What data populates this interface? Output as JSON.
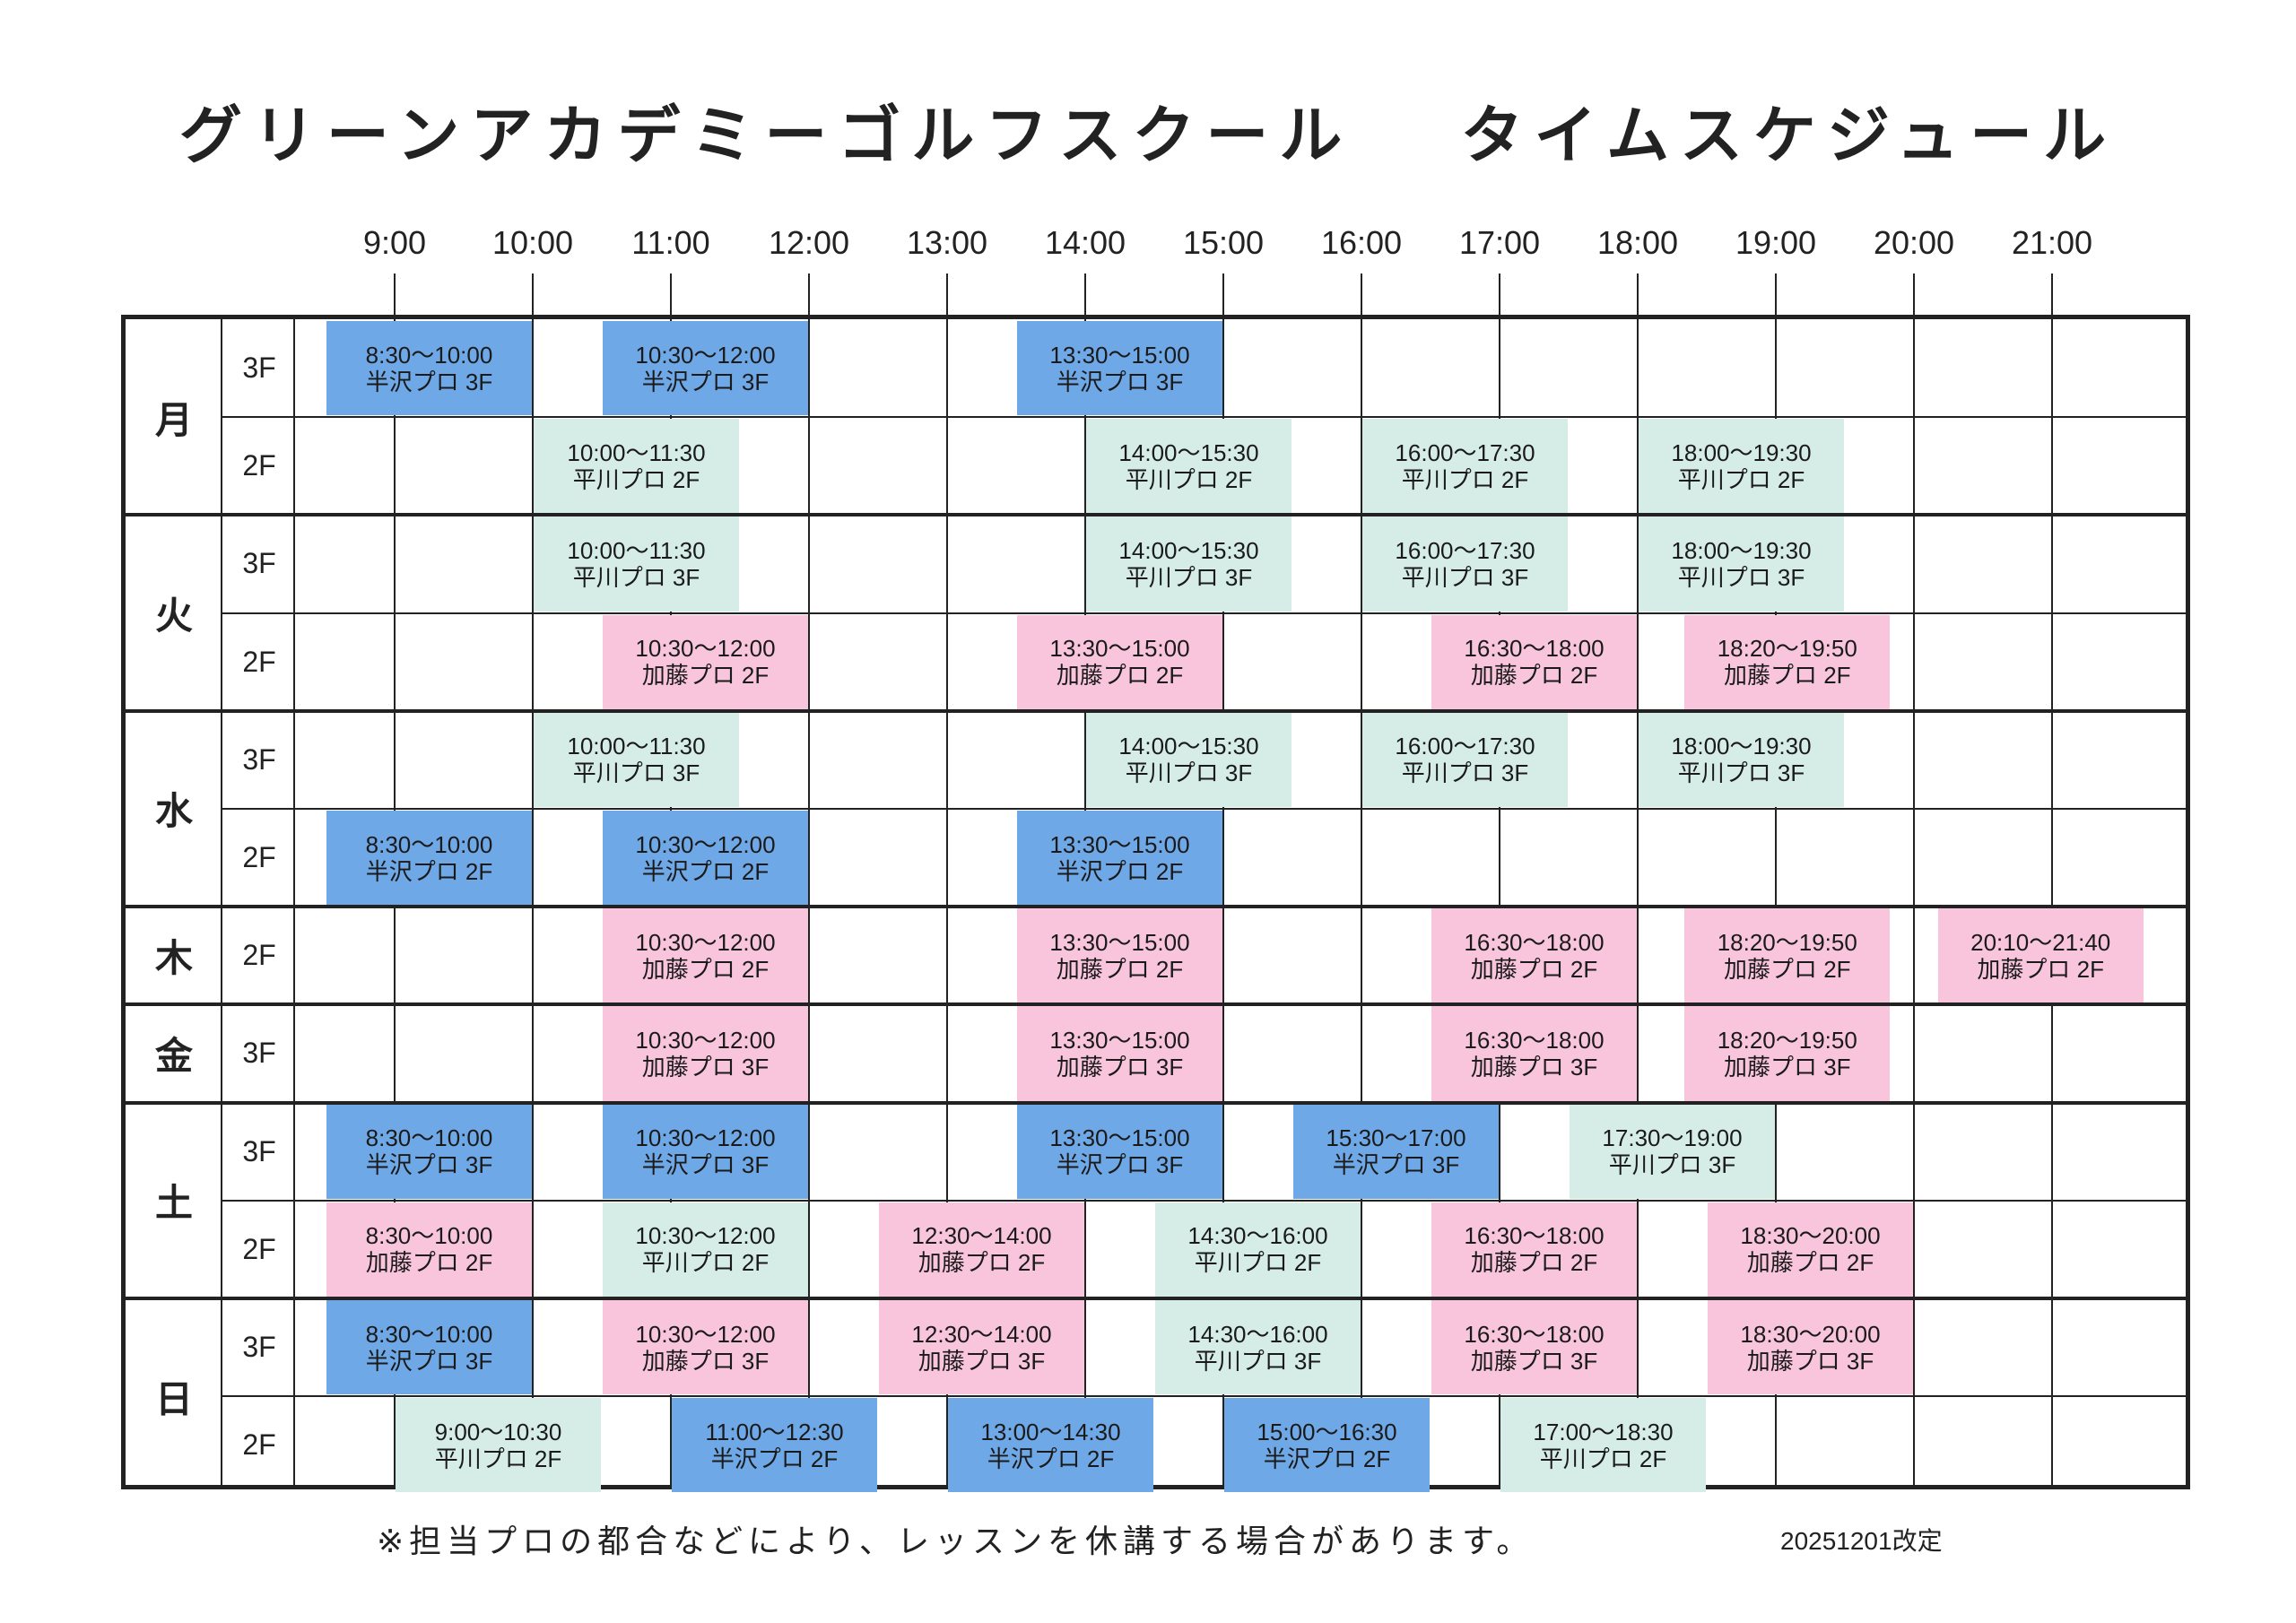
{
  "title": {
    "school": "グリーンアカデミーゴルフスクール",
    "subtitle": "タイムスケジュール"
  },
  "hours": [
    "9:00",
    "10:00",
    "11:00",
    "12:00",
    "13:00",
    "14:00",
    "15:00",
    "16:00",
    "17:00",
    "18:00",
    "19:00",
    "20:00",
    "21:00"
  ],
  "days": [
    {
      "label": "月",
      "floors": [
        "3F",
        "2F"
      ]
    },
    {
      "label": "火",
      "floors": [
        "3F",
        "2F"
      ]
    },
    {
      "label": "水",
      "floors": [
        "3F",
        "2F"
      ]
    },
    {
      "label": "木",
      "floors": [
        "2F"
      ]
    },
    {
      "label": "金",
      "floors": [
        "3F"
      ]
    },
    {
      "label": "土",
      "floors": [
        "3F",
        "2F"
      ]
    },
    {
      "label": "日",
      "floors": [
        "3F",
        "2F"
      ]
    }
  ],
  "instructor_colors": {
    "半沢プロ": "#6fa8e6",
    "平川プロ": "#d5ede6",
    "加藤プロ": "#f8c5dc"
  },
  "lessons": [
    {
      "row": 0,
      "time": "8:30〜10:00",
      "label": "半沢プロ 3F",
      "start": 8.5,
      "end": 10.0,
      "color": "blue"
    },
    {
      "row": 0,
      "time": "10:30〜12:00",
      "label": "半沢プロ 3F",
      "start": 10.5,
      "end": 12.0,
      "color": "blue"
    },
    {
      "row": 0,
      "time": "13:30〜15:00",
      "label": "半沢プロ 3F",
      "start": 13.5,
      "end": 15.0,
      "color": "blue"
    },
    {
      "row": 1,
      "time": "10:00〜11:30",
      "label": "平川プロ 2F",
      "start": 10.0,
      "end": 11.5,
      "color": "green"
    },
    {
      "row": 1,
      "time": "14:00〜15:30",
      "label": "平川プロ 2F",
      "start": 14.0,
      "end": 15.5,
      "color": "green"
    },
    {
      "row": 1,
      "time": "16:00〜17:30",
      "label": "平川プロ 2F",
      "start": 16.0,
      "end": 17.5,
      "color": "green"
    },
    {
      "row": 1,
      "time": "18:00〜19:30",
      "label": "平川プロ 2F",
      "start": 18.0,
      "end": 19.5,
      "color": "green"
    },
    {
      "row": 2,
      "time": "10:00〜11:30",
      "label": "平川プロ 3F",
      "start": 10.0,
      "end": 11.5,
      "color": "green"
    },
    {
      "row": 2,
      "time": "14:00〜15:30",
      "label": "平川プロ 3F",
      "start": 14.0,
      "end": 15.5,
      "color": "green"
    },
    {
      "row": 2,
      "time": "16:00〜17:30",
      "label": "平川プロ 3F",
      "start": 16.0,
      "end": 17.5,
      "color": "green"
    },
    {
      "row": 2,
      "time": "18:00〜19:30",
      "label": "平川プロ 3F",
      "start": 18.0,
      "end": 19.5,
      "color": "green"
    },
    {
      "row": 3,
      "time": "10:30〜12:00",
      "label": "加藤プロ 2F",
      "start": 10.5,
      "end": 12.0,
      "color": "pink"
    },
    {
      "row": 3,
      "time": "13:30〜15:00",
      "label": "加藤プロ 2F",
      "start": 13.5,
      "end": 15.0,
      "color": "pink"
    },
    {
      "row": 3,
      "time": "16:30〜18:00",
      "label": "加藤プロ 2F",
      "start": 16.5,
      "end": 18.0,
      "color": "pink"
    },
    {
      "row": 3,
      "time": "18:20〜19:50",
      "label": "加藤プロ 2F",
      "start": 18.333,
      "end": 19.833,
      "color": "pink"
    },
    {
      "row": 4,
      "time": "10:00〜11:30",
      "label": "平川プロ 3F",
      "start": 10.0,
      "end": 11.5,
      "color": "green"
    },
    {
      "row": 4,
      "time": "14:00〜15:30",
      "label": "平川プロ 3F",
      "start": 14.0,
      "end": 15.5,
      "color": "green"
    },
    {
      "row": 4,
      "time": "16:00〜17:30",
      "label": "平川プロ 3F",
      "start": 16.0,
      "end": 17.5,
      "color": "green"
    },
    {
      "row": 4,
      "time": "18:00〜19:30",
      "label": "平川プロ 3F",
      "start": 18.0,
      "end": 19.5,
      "color": "green"
    },
    {
      "row": 5,
      "time": "8:30〜10:00",
      "label": "半沢プロ 2F",
      "start": 8.5,
      "end": 10.0,
      "color": "blue"
    },
    {
      "row": 5,
      "time": "10:30〜12:00",
      "label": "半沢プロ 2F",
      "start": 10.5,
      "end": 12.0,
      "color": "blue"
    },
    {
      "row": 5,
      "time": "13:30〜15:00",
      "label": "半沢プロ 2F",
      "start": 13.5,
      "end": 15.0,
      "color": "blue"
    },
    {
      "row": 6,
      "time": "10:30〜12:00",
      "label": "加藤プロ 2F",
      "start": 10.5,
      "end": 12.0,
      "color": "pink"
    },
    {
      "row": 6,
      "time": "13:30〜15:00",
      "label": "加藤プロ 2F",
      "start": 13.5,
      "end": 15.0,
      "color": "pink"
    },
    {
      "row": 6,
      "time": "16:30〜18:00",
      "label": "加藤プロ 2F",
      "start": 16.5,
      "end": 18.0,
      "color": "pink"
    },
    {
      "row": 6,
      "time": "18:20〜19:50",
      "label": "加藤プロ 2F",
      "start": 18.333,
      "end": 19.833,
      "color": "pink"
    },
    {
      "row": 6,
      "time": "20:10〜21:40",
      "label": "加藤プロ 2F",
      "start": 20.167,
      "end": 21.667,
      "color": "pink"
    },
    {
      "row": 7,
      "time": "10:30〜12:00",
      "label": "加藤プロ 3F",
      "start": 10.5,
      "end": 12.0,
      "color": "pink"
    },
    {
      "row": 7,
      "time": "13:30〜15:00",
      "label": "加藤プロ 3F",
      "start": 13.5,
      "end": 15.0,
      "color": "pink"
    },
    {
      "row": 7,
      "time": "16:30〜18:00",
      "label": "加藤プロ 3F",
      "start": 16.5,
      "end": 18.0,
      "color": "pink"
    },
    {
      "row": 7,
      "time": "18:20〜19:50",
      "label": "加藤プロ 3F",
      "start": 18.333,
      "end": 19.833,
      "color": "pink"
    },
    {
      "row": 8,
      "time": "8:30〜10:00",
      "label": "半沢プロ 3F",
      "start": 8.5,
      "end": 10.0,
      "color": "blue"
    },
    {
      "row": 8,
      "time": "10:30〜12:00",
      "label": "半沢プロ 3F",
      "start": 10.5,
      "end": 12.0,
      "color": "blue"
    },
    {
      "row": 8,
      "time": "13:30〜15:00",
      "label": "半沢プロ 3F",
      "start": 13.5,
      "end": 15.0,
      "color": "blue"
    },
    {
      "row": 8,
      "time": "15:30〜17:00",
      "label": "半沢プロ 3F",
      "start": 15.5,
      "end": 17.0,
      "color": "blue"
    },
    {
      "row": 8,
      "time": "17:30〜19:00",
      "label": "平川プロ 3F",
      "start": 17.5,
      "end": 19.0,
      "color": "green"
    },
    {
      "row": 9,
      "time": "8:30〜10:00",
      "label": "加藤プロ 2F",
      "start": 8.5,
      "end": 10.0,
      "color": "pink"
    },
    {
      "row": 9,
      "time": "10:30〜12:00",
      "label": "平川プロ 2F",
      "start": 10.5,
      "end": 12.0,
      "color": "green"
    },
    {
      "row": 9,
      "time": "12:30〜14:00",
      "label": "加藤プロ 2F",
      "start": 12.5,
      "end": 14.0,
      "color": "pink"
    },
    {
      "row": 9,
      "time": "14:30〜16:00",
      "label": "平川プロ 2F",
      "start": 14.5,
      "end": 16.0,
      "color": "green"
    },
    {
      "row": 9,
      "time": "16:30〜18:00",
      "label": "加藤プロ 2F",
      "start": 16.5,
      "end": 18.0,
      "color": "pink"
    },
    {
      "row": 9,
      "time": "18:30〜20:00",
      "label": "加藤プロ 2F",
      "start": 18.5,
      "end": 20.0,
      "color": "pink"
    },
    {
      "row": 10,
      "time": "8:30〜10:00",
      "label": "半沢プロ 3F",
      "start": 8.5,
      "end": 10.0,
      "color": "blue"
    },
    {
      "row": 10,
      "time": "10:30〜12:00",
      "label": "加藤プロ 3F",
      "start": 10.5,
      "end": 12.0,
      "color": "pink"
    },
    {
      "row": 10,
      "time": "12:30〜14:00",
      "label": "加藤プロ 3F",
      "start": 12.5,
      "end": 14.0,
      "color": "pink"
    },
    {
      "row": 10,
      "time": "14:30〜16:00",
      "label": "平川プロ 3F",
      "start": 14.5,
      "end": 16.0,
      "color": "green"
    },
    {
      "row": 10,
      "time": "16:30〜18:00",
      "label": "加藤プロ 3F",
      "start": 16.5,
      "end": 18.0,
      "color": "pink"
    },
    {
      "row": 10,
      "time": "18:30〜20:00",
      "label": "加藤プロ 3F",
      "start": 18.5,
      "end": 20.0,
      "color": "pink"
    },
    {
      "row": 11,
      "time": "9:00〜10:30",
      "label": "平川プロ 2F",
      "start": 9.0,
      "end": 10.5,
      "color": "green"
    },
    {
      "row": 11,
      "time": "11:00〜12:30",
      "label": "半沢プロ 2F",
      "start": 11.0,
      "end": 12.5,
      "color": "blue"
    },
    {
      "row": 11,
      "time": "13:00〜14:30",
      "label": "半沢プロ 2F",
      "start": 13.0,
      "end": 14.5,
      "color": "blue"
    },
    {
      "row": 11,
      "time": "15:00〜16:30",
      "label": "半沢プロ 2F",
      "start": 15.0,
      "end": 16.5,
      "color": "blue"
    },
    {
      "row": 11,
      "time": "17:00〜18:30",
      "label": "平川プロ 2F",
      "start": 17.0,
      "end": 18.5,
      "color": "green"
    }
  ],
  "note": "※担当プロの都合などにより、レッスンを休講する場合があります。",
  "revision": "20251201改定"
}
